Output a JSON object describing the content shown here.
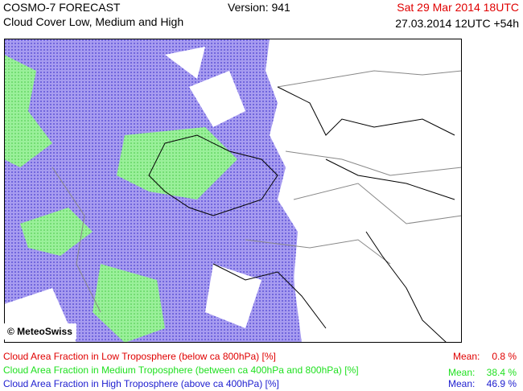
{
  "header": {
    "title": "COSMO-7 FORECAST",
    "subtitle": "Cloud Cover Low, Medium and High",
    "version": "Version: 941",
    "valid_time": "Sat 29 Mar 2014 18UTC",
    "run_time": "27.03.2014 12UTC +54h"
  },
  "map": {
    "copyright": "© MeteoSwiss"
  },
  "legend": [
    {
      "label": "Cloud Area Fraction in Low Troposphere (below ca 800hPa) [%]",
      "mean_label": "Mean:",
      "mean": "0.8 %"
    },
    {
      "label": "Cloud Area Fraction in Medium Troposphere (between ca 400hPa and 800hPa) [%]",
      "mean_label": "Mean:",
      "mean": "38.4 %"
    },
    {
      "label": "Cloud Area Fraction in High Troposphere (above ca 400hPa) [%]",
      "mean_label": "Mean:",
      "mean": "46.9 %"
    }
  ]
}
